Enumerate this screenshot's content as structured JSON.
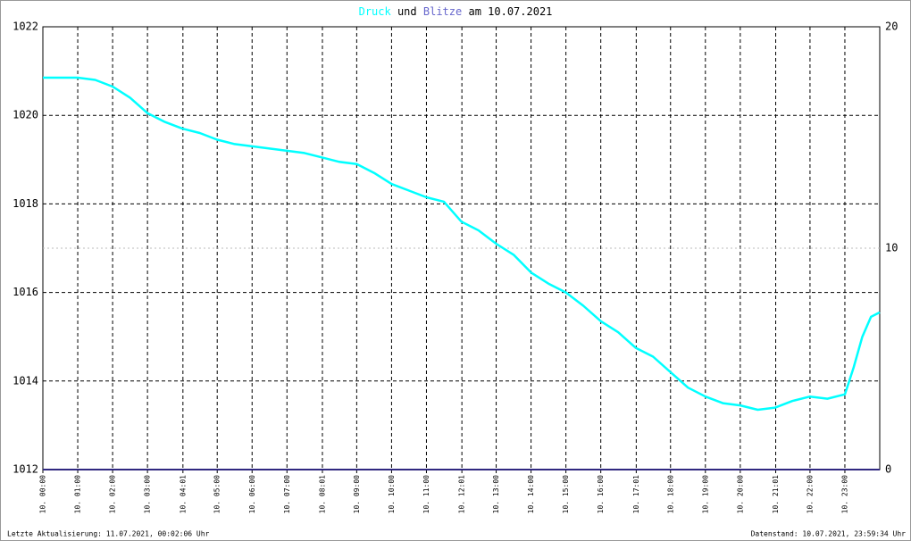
{
  "chart_data": {
    "type": "line",
    "title_connector": "und",
    "title_suffix": "am 10.07.2021",
    "footer_left": "Letzte Aktualisierung: 11.07.2021, 00:02:06 Uhr",
    "footer_right": "Datenstand: 10.07.2021, 23:59:34 Uhr",
    "xlim": [
      0,
      24
    ],
    "xticks": [
      {
        "value": 0,
        "label": "10. 00:00"
      },
      {
        "value": 1,
        "label": "10. 01:00"
      },
      {
        "value": 2,
        "label": "10. 02:00"
      },
      {
        "value": 3,
        "label": "10. 03:00"
      },
      {
        "value": 4.0167,
        "label": "10. 04:01"
      },
      {
        "value": 5,
        "label": "10. 05:00"
      },
      {
        "value": 6,
        "label": "10. 06:00"
      },
      {
        "value": 7,
        "label": "10. 07:00"
      },
      {
        "value": 8.0167,
        "label": "10. 08:01"
      },
      {
        "value": 9,
        "label": "10. 09:00"
      },
      {
        "value": 10,
        "label": "10. 10:00"
      },
      {
        "value": 11,
        "label": "10. 11:00"
      },
      {
        "value": 12.0167,
        "label": "10. 12:01"
      },
      {
        "value": 13,
        "label": "10. 13:00"
      },
      {
        "value": 14,
        "label": "10. 14:00"
      },
      {
        "value": 15,
        "label": "10. 15:00"
      },
      {
        "value": 16,
        "label": "10. 16:00"
      },
      {
        "value": 17.0167,
        "label": "10. 17:01"
      },
      {
        "value": 18,
        "label": "10. 18:00"
      },
      {
        "value": 19,
        "label": "10. 19:00"
      },
      {
        "value": 20,
        "label": "10. 20:00"
      },
      {
        "value": 21.0167,
        "label": "10. 21:01"
      },
      {
        "value": 22,
        "label": "10. 22:00"
      },
      {
        "value": 23,
        "label": "10. 23:00"
      }
    ],
    "ylim": [
      1012,
      1022
    ],
    "yticks": [
      1012,
      1014,
      1016,
      1018,
      1020,
      1022
    ],
    "y2lim": [
      0,
      20
    ],
    "y2ticks": [
      0,
      10,
      20
    ],
    "grid": true,
    "series": [
      {
        "name": "Druck",
        "color": "#00ffff",
        "x": [
          0,
          0.5,
          1,
          1.5,
          2,
          2.5,
          3,
          3.5,
          4,
          4.5,
          5,
          5.5,
          6,
          6.5,
          7,
          7.5,
          8,
          8.5,
          9,
          9.5,
          10,
          10.5,
          11,
          11.5,
          12,
          12.5,
          13,
          13.5,
          14,
          14.5,
          15,
          15.5,
          16,
          16.5,
          17,
          17.5,
          18,
          18.5,
          19,
          19.5,
          20,
          20.5,
          21,
          21.5,
          22,
          22.5,
          23,
          23.25,
          23.5,
          23.75,
          24
        ],
        "values": [
          1020.85,
          1020.85,
          1020.85,
          1020.8,
          1020.65,
          1020.4,
          1020.05,
          1019.85,
          1019.7,
          1019.6,
          1019.45,
          1019.35,
          1019.3,
          1019.25,
          1019.2,
          1019.15,
          1019.05,
          1018.95,
          1018.9,
          1018.7,
          1018.45,
          1018.3,
          1018.15,
          1018.05,
          1017.6,
          1017.4,
          1017.1,
          1016.85,
          1016.45,
          1016.2,
          1016.0,
          1015.7,
          1015.35,
          1015.1,
          1014.75,
          1014.55,
          1014.2,
          1013.85,
          1013.65,
          1013.5,
          1013.45,
          1013.35,
          1013.4,
          1013.55,
          1013.65,
          1013.6,
          1013.7,
          1014.3,
          1015.0,
          1015.45,
          1015.55
        ]
      },
      {
        "name": "Blitze",
        "color": "#6666cc",
        "line_color": "#302880",
        "axis": "y2",
        "x": [
          0,
          24
        ],
        "values": [
          0,
          0
        ]
      }
    ]
  }
}
